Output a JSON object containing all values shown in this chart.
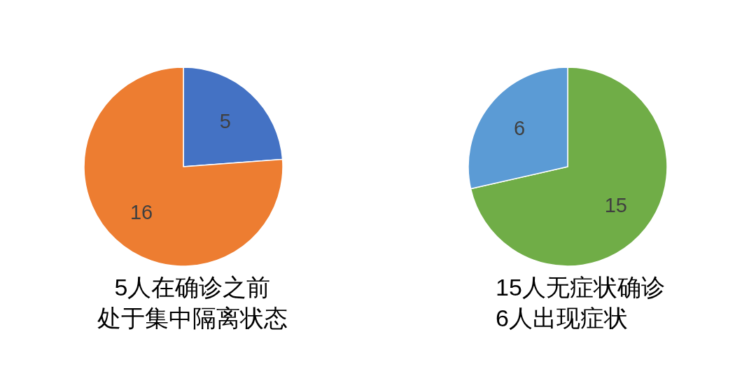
{
  "chart_data": [
    {
      "type": "pie",
      "categories": [
        null,
        null
      ],
      "values": [
        5,
        16
      ],
      "colors": [
        "#4472c4",
        "#ed7d31"
      ],
      "data_labels": true,
      "annotations": [
        "5人在确诊之前",
        "处于集中隔离状态"
      ]
    },
    {
      "type": "pie",
      "categories": [
        null,
        null
      ],
      "values": [
        15,
        6
      ],
      "colors": [
        "#70ad47",
        "#5b9bd5"
      ],
      "data_labels": true,
      "annotations": [
        "15人无症状确诊",
        "6人出现症状"
      ]
    }
  ]
}
